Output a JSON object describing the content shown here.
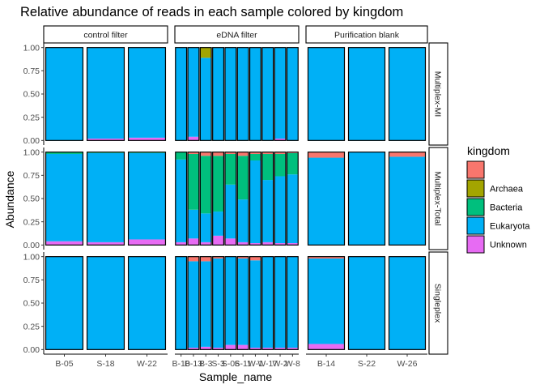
{
  "chart_data": {
    "type": "bar",
    "title": "Relative abundance of reads in each sample colored by kingdom",
    "xlabel": "Sample_name",
    "ylabel": "Abundance",
    "ylim": [
      0,
      1
    ],
    "yticks": [
      "0.00",
      "0.25",
      "0.50",
      "0.75",
      "1.00"
    ],
    "stacked": true,
    "facet_columns": [
      "control filter",
      "eDNA filter",
      "Purification blank"
    ],
    "facet_rows": [
      "Multiplex-MI",
      "Multiplex-Total",
      "Singleplex"
    ],
    "legend": {
      "title": "kingdom",
      "position": "right",
      "entries": [
        {
          "label": "",
          "color": "#F8766D"
        },
        {
          "label": "Archaea",
          "color": "#A3A500"
        },
        {
          "label": "Bacteria",
          "color": "#00BF7D"
        },
        {
          "label": "Eukaryota",
          "color": "#00B0F6"
        },
        {
          "label": "Unknown",
          "color": "#E76BF3"
        }
      ]
    },
    "stack_order": [
      "Unknown",
      "Eukaryota",
      "Bacteria",
      "Archaea",
      "NA"
    ],
    "colors": {
      "NA": "#F8766D",
      "Archaea": "#A3A500",
      "Bacteria": "#00BF7D",
      "Eukaryota": "#00B0F6",
      "Unknown": "#E76BF3"
    },
    "panels": [
      {
        "column": "control filter",
        "categories": [
          "B-05",
          "S-18",
          "W-22"
        ],
        "rows": {
          "Multiplex-MI": [
            {
              "Unknown": 0.0,
              "Eukaryota": 1.0,
              "Bacteria": 0.0,
              "Archaea": 0.0,
              "NA": 0.0
            },
            {
              "Unknown": 0.02,
              "Eukaryota": 0.98,
              "Bacteria": 0.0,
              "Archaea": 0.0,
              "NA": 0.0
            },
            {
              "Unknown": 0.03,
              "Eukaryota": 0.97,
              "Bacteria": 0.0,
              "Archaea": 0.0,
              "NA": 0.0
            }
          ],
          "Multiplex-Total": [
            {
              "Unknown": 0.04,
              "Eukaryota": 0.94,
              "Bacteria": 0.02,
              "Archaea": 0.0,
              "NA": 0.0
            },
            {
              "Unknown": 0.03,
              "Eukaryota": 0.96,
              "Bacteria": 0.01,
              "Archaea": 0.0,
              "NA": 0.0
            },
            {
              "Unknown": 0.06,
              "Eukaryota": 0.93,
              "Bacteria": 0.01,
              "Archaea": 0.0,
              "NA": 0.0
            }
          ],
          "Singleplex": [
            {
              "Unknown": 0.0,
              "Eukaryota": 1.0,
              "Bacteria": 0.0,
              "Archaea": 0.0,
              "NA": 0.0
            },
            {
              "Unknown": 0.0,
              "Eukaryota": 1.0,
              "Bacteria": 0.0,
              "Archaea": 0.0,
              "NA": 0.0
            },
            {
              "Unknown": 0.0,
              "Eukaryota": 1.0,
              "Bacteria": 0.0,
              "Archaea": 0.0,
              "NA": 0.0
            }
          ]
        }
      },
      {
        "column": "eDNA filter",
        "categories": [
          "B-10",
          "B-13",
          "B-3",
          "S-3",
          "S-06",
          "S-11",
          "W-1",
          "W-17",
          "W-2",
          "W-8"
        ],
        "tick_labels": [
          "B-10",
          "B-13",
          "B-3",
          "S-3",
          "S-06",
          "S-11",
          "W-1",
          "W-17",
          "W-2",
          "W-8"
        ],
        "rows": {
          "Multiplex-MI": [
            {
              "Unknown": 0.0,
              "Eukaryota": 1.0,
              "Bacteria": 0.0,
              "Archaea": 0.0,
              "NA": 0.0
            },
            {
              "Unknown": 0.04,
              "Eukaryota": 0.96,
              "Bacteria": 0.0,
              "Archaea": 0.0,
              "NA": 0.0
            },
            {
              "Unknown": 0.0,
              "Eukaryota": 0.89,
              "Bacteria": 0.0,
              "Archaea": 0.11,
              "NA": 0.0
            },
            {
              "Unknown": 0.0,
              "Eukaryota": 1.0,
              "Bacteria": 0.0,
              "Archaea": 0.0,
              "NA": 0.0
            },
            {
              "Unknown": 0.0,
              "Eukaryota": 1.0,
              "Bacteria": 0.0,
              "Archaea": 0.0,
              "NA": 0.0
            },
            {
              "Unknown": 0.0,
              "Eukaryota": 1.0,
              "Bacteria": 0.0,
              "Archaea": 0.0,
              "NA": 0.0
            },
            {
              "Unknown": 0.0,
              "Eukaryota": 1.0,
              "Bacteria": 0.0,
              "Archaea": 0.0,
              "NA": 0.0
            },
            {
              "Unknown": 0.0,
              "Eukaryota": 1.0,
              "Bacteria": 0.0,
              "Archaea": 0.0,
              "NA": 0.0
            },
            {
              "Unknown": 0.02,
              "Eukaryota": 0.98,
              "Bacteria": 0.0,
              "Archaea": 0.0,
              "NA": 0.0
            },
            {
              "Unknown": 0.0,
              "Eukaryota": 1.0,
              "Bacteria": 0.0,
              "Archaea": 0.0,
              "NA": 0.0
            }
          ],
          "Multiplex-Total": [
            {
              "Unknown": 0.03,
              "Eukaryota": 0.89,
              "Bacteria": 0.08,
              "Archaea": 0.0,
              "NA": 0.0
            },
            {
              "Unknown": 0.07,
              "Eukaryota": 0.31,
              "Bacteria": 0.6,
              "Archaea": 0.0,
              "NA": 0.02
            },
            {
              "Unknown": 0.03,
              "Eukaryota": 0.31,
              "Bacteria": 0.62,
              "Archaea": 0.0,
              "NA": 0.04
            },
            {
              "Unknown": 0.1,
              "Eukaryota": 0.26,
              "Bacteria": 0.6,
              "Archaea": 0.0,
              "NA": 0.04
            },
            {
              "Unknown": 0.07,
              "Eukaryota": 0.58,
              "Bacteria": 0.33,
              "Archaea": 0.0,
              "NA": 0.02
            },
            {
              "Unknown": 0.03,
              "Eukaryota": 0.46,
              "Bacteria": 0.47,
              "Archaea": 0.0,
              "NA": 0.04
            },
            {
              "Unknown": 0.02,
              "Eukaryota": 0.89,
              "Bacteria": 0.07,
              "Archaea": 0.0,
              "NA": 0.02
            },
            {
              "Unknown": 0.03,
              "Eukaryota": 0.67,
              "Bacteria": 0.28,
              "Archaea": 0.0,
              "NA": 0.02
            },
            {
              "Unknown": 0.02,
              "Eukaryota": 0.72,
              "Bacteria": 0.24,
              "Archaea": 0.0,
              "NA": 0.02
            },
            {
              "Unknown": 0.02,
              "Eukaryota": 0.74,
              "Bacteria": 0.23,
              "Archaea": 0.0,
              "NA": 0.01
            }
          ],
          "Singleplex": [
            {
              "Unknown": 0.0,
              "Eukaryota": 1.0,
              "Bacteria": 0.0,
              "Archaea": 0.0,
              "NA": 0.0
            },
            {
              "Unknown": 0.02,
              "Eukaryota": 0.93,
              "Bacteria": 0.0,
              "Archaea": 0.0,
              "NA": 0.05
            },
            {
              "Unknown": 0.03,
              "Eukaryota": 0.92,
              "Bacteria": 0.0,
              "Archaea": 0.0,
              "NA": 0.05
            },
            {
              "Unknown": 0.02,
              "Eukaryota": 0.96,
              "Bacteria": 0.0,
              "Archaea": 0.0,
              "NA": 0.02
            },
            {
              "Unknown": 0.05,
              "Eukaryota": 0.95,
              "Bacteria": 0.0,
              "Archaea": 0.0,
              "NA": 0.0
            },
            {
              "Unknown": 0.05,
              "Eukaryota": 0.93,
              "Bacteria": 0.0,
              "Archaea": 0.0,
              "NA": 0.02
            },
            {
              "Unknown": 0.02,
              "Eukaryota": 0.94,
              "Bacteria": 0.0,
              "Archaea": 0.0,
              "NA": 0.04
            },
            {
              "Unknown": 0.02,
              "Eukaryota": 0.98,
              "Bacteria": 0.0,
              "Archaea": 0.0,
              "NA": 0.0
            },
            {
              "Unknown": 0.02,
              "Eukaryota": 0.98,
              "Bacteria": 0.0,
              "Archaea": 0.0,
              "NA": 0.0
            },
            {
              "Unknown": 0.02,
              "Eukaryota": 0.98,
              "Bacteria": 0.0,
              "Archaea": 0.0,
              "NA": 0.0
            }
          ]
        }
      },
      {
        "column": "Purification blank",
        "categories": [
          "B-14",
          "S-22",
          "W-26"
        ],
        "rows": {
          "Multiplex-MI": [
            {
              "Unknown": 0.0,
              "Eukaryota": 1.0,
              "Bacteria": 0.0,
              "Archaea": 0.0,
              "NA": 0.0
            },
            {
              "Unknown": 0.0,
              "Eukaryota": 1.0,
              "Bacteria": 0.0,
              "Archaea": 0.0,
              "NA": 0.0
            },
            {
              "Unknown": 0.0,
              "Eukaryota": 1.0,
              "Bacteria": 0.0,
              "Archaea": 0.0,
              "NA": 0.0
            }
          ],
          "Multiplex-Total": [
            {
              "Unknown": 0.0,
              "Eukaryota": 0.94,
              "Bacteria": 0.0,
              "Archaea": 0.0,
              "NA": 0.06
            },
            {
              "Unknown": 0.0,
              "Eukaryota": 1.0,
              "Bacteria": 0.0,
              "Archaea": 0.0,
              "NA": 0.0
            },
            {
              "Unknown": 0.0,
              "Eukaryota": 0.95,
              "Bacteria": 0.0,
              "Archaea": 0.0,
              "NA": 0.05
            }
          ],
          "Singleplex": [
            {
              "Unknown": 0.06,
              "Eukaryota": 0.92,
              "Bacteria": 0.0,
              "Archaea": 0.0,
              "NA": 0.02
            },
            {
              "Unknown": 0.0,
              "Eukaryota": 1.0,
              "Bacteria": 0.0,
              "Archaea": 0.0,
              "NA": 0.0
            },
            {
              "Unknown": 0.0,
              "Eukaryota": 1.0,
              "Bacteria": 0.0,
              "Archaea": 0.0,
              "NA": 0.0
            }
          ]
        }
      }
    ]
  }
}
